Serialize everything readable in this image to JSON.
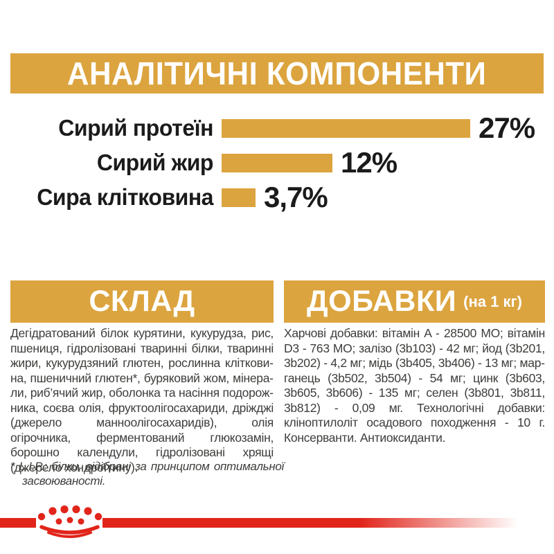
{
  "colors": {
    "gold": "#DCA43F",
    "red": "#E1251B",
    "heading_text": "#FFFFFF",
    "chart_text": "#1B1B1B",
    "body_text": "#3D3D3B",
    "background": "#FFFFFF"
  },
  "header": {
    "title": "АНАЛІТИЧНІ КОМПОНЕНТИ"
  },
  "chart_data": {
    "type": "bar",
    "orientation": "horizontal",
    "title": "АНАЛІТИЧНІ КОМПОНЕНТИ",
    "unit": "%",
    "xlim": [
      0,
      30
    ],
    "grid": false,
    "bar_color": "#DCA43F",
    "categories": [
      "Сирий протеїн",
      "Сирий жир",
      "Сира клітковина"
    ],
    "values": [
      27,
      12,
      3.7
    ],
    "value_labels": [
      "27%",
      "12%",
      "3,7%"
    ],
    "rows": [
      {
        "label": "Сирий протеїн",
        "value": 27,
        "value_label": "27%"
      },
      {
        "label": "Сирий жир",
        "value": 12,
        "value_label": "12%"
      },
      {
        "label": "Сира клітковина",
        "value": 3.7,
        "value_label": "3,7%"
      }
    ]
  },
  "composition": {
    "heading": "СКЛАД",
    "body": "Дегідратований білок курятини, кукурудза, рис, пшениця, гідролізовані тваринні білки, тваринні жири, кукурудзяний глютен, рослинна кліткови­на, пшеничний глютен*, буряковий жом, мінера­ли, риб’ячий жир, оболонка та насіння подорож­ника, соєва олія, фруктоолігосахариди, дріжджі (джерело манноолігосахаридів), олія огірочника, ферментований глюкозамін, борошно календули, гідролізовані хрящі (джерело хондроїтину).",
    "footnote": "* L.I.P.: білки, відібрані за принципом оптимальної засвоюваності."
  },
  "additives": {
    "heading": "ДОБАВКИ",
    "heading_suffix": "(на 1 кг)",
    "body": "Харчові добавки: вітамін A - 28500 МО; вітамін D3 - 763 МО; залізо (3b103) - 42 мг; йод (3b201, 3b202) - 4,2 мг; мідь (3b405, 3b406) - 13 мг; мар­ганець (3b502, 3b504) - 54 мг; цинк (3b603, 3b605, 3b606) - 135 мг; селен (3b801, 3b811, 3b812) - 0,09 мг. Технологічні добавки: кліноптилоліт оса­дового походження - 10 г. Консерванти. Анти­оксиданти."
  },
  "footer": {
    "logo": "royal-canin-crown"
  }
}
